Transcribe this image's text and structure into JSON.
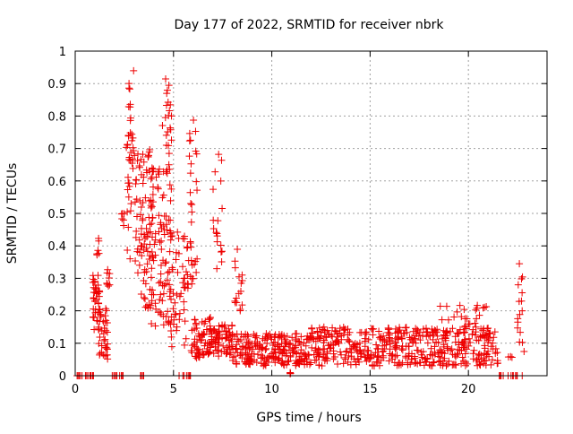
{
  "chart_data": {
    "type": "scatter",
    "title": "Day 177 of 2022, SRMTID for receiver nbrk",
    "xlabel": "GPS time / hours",
    "ylabel": "SRMTID / TECUs",
    "xlim": [
      0,
      24
    ],
    "ylim": [
      0,
      1
    ],
    "x_ticks": [
      0,
      5,
      10,
      15,
      20
    ],
    "y_ticks": [
      0,
      0.1,
      0.2,
      0.3,
      0.4,
      0.5,
      0.6,
      0.7,
      0.8,
      0.9,
      1
    ],
    "grid": true,
    "marker": "+",
    "color": "#ee0000",
    "series": [
      {
        "name": "SRMTID",
        "clusters": [
          {
            "x": [
              0.05,
              0.95
            ],
            "y": [
              0,
              0
            ],
            "n": 14
          },
          {
            "x": [
              0.9,
              1.25
            ],
            "y": [
              0.14,
              0.31
            ],
            "n": 40
          },
          {
            "x": [
              1.1,
              1.3
            ],
            "y": [
              0.33,
              0.43
            ],
            "n": 6
          },
          {
            "x": [
              1.2,
              1.65
            ],
            "y": [
              0.05,
              0.21
            ],
            "n": 35
          },
          {
            "x": [
              1.55,
              1.75
            ],
            "y": [
              0.27,
              0.36
            ],
            "n": 8
          },
          {
            "x": [
              1.8,
              2.45
            ],
            "y": [
              0,
              0
            ],
            "n": 10
          },
          {
            "x": [
              2.3,
              2.5
            ],
            "y": [
              0.46,
              0.5
            ],
            "n": 6
          },
          {
            "x": [
              2.6,
              3.0
            ],
            "y": [
              0.35,
              0.75
            ],
            "n": 30
          },
          {
            "x": [
              2.7,
              3.1
            ],
            "y": [
              0.77,
              0.95
            ],
            "n": 9
          },
          {
            "x": [
              3.0,
              4.0
            ],
            "y": [
              0.2,
              0.7
            ],
            "n": 90
          },
          {
            "x": [
              3.3,
              3.5
            ],
            "y": [
              0,
              0
            ],
            "n": 5
          },
          {
            "x": [
              3.8,
              4.9
            ],
            "y": [
              0.15,
              0.65
            ],
            "n": 95
          },
          {
            "x": [
              4.4,
              4.9
            ],
            "y": [
              0.66,
              0.93
            ],
            "n": 20
          },
          {
            "x": [
              4.8,
              5.8
            ],
            "y": [
              0.08,
              0.45
            ],
            "n": 55
          },
          {
            "x": [
              5.2,
              5.9
            ],
            "y": [
              0,
              0
            ],
            "n": 9
          },
          {
            "x": [
              5.8,
              6.2
            ],
            "y": [
              0.25,
              0.8
            ],
            "n": 30
          },
          {
            "x": [
              5.9,
              7.0
            ],
            "y": [
              0.05,
              0.18
            ],
            "n": 70
          },
          {
            "x": [
              7.0,
              7.5
            ],
            "y": [
              0.3,
              0.72
            ],
            "n": 18
          },
          {
            "x": [
              7.0,
              8.0
            ],
            "y": [
              0.06,
              0.16
            ],
            "n": 60
          },
          {
            "x": [
              8.1,
              8.5
            ],
            "y": [
              0.2,
              0.39
            ],
            "n": 16
          },
          {
            "x": [
              8.0,
              12.0
            ],
            "y": [
              0.03,
              0.13
            ],
            "n": 230
          },
          {
            "x": [
              10.9,
              11.0
            ],
            "y": [
              0,
              0.01
            ],
            "n": 3
          },
          {
            "x": [
              12.0,
              21.5
            ],
            "y": [
              0.03,
              0.15
            ],
            "n": 470
          },
          {
            "x": [
              18.5,
              21.0
            ],
            "y": [
              0.12,
              0.22
            ],
            "n": 30
          },
          {
            "x": [
              21.5,
              22.8
            ],
            "y": [
              0,
              0
            ],
            "n": 14
          },
          {
            "x": [
              22.0,
              22.3
            ],
            "y": [
              0.05,
              0.06
            ],
            "n": 3
          },
          {
            "x": [
              22.5,
              22.85
            ],
            "y": [
              0.07,
              0.35
            ],
            "n": 16
          }
        ]
      }
    ]
  }
}
